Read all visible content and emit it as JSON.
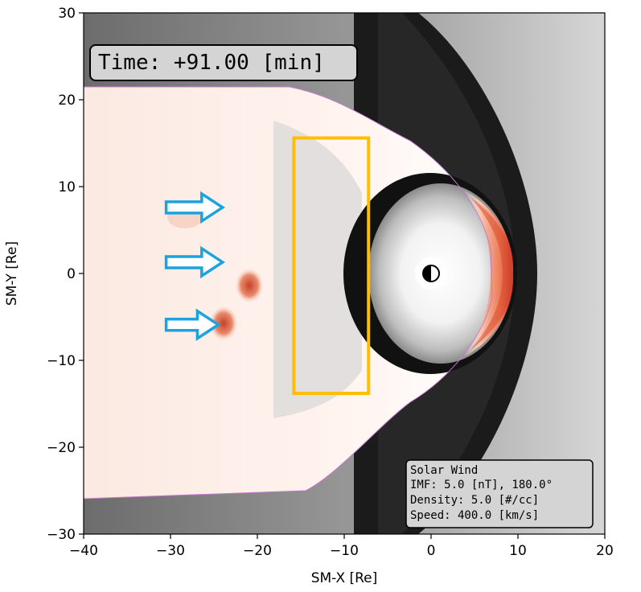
{
  "time_label": "Time: +91.00 [min]",
  "solar_wind": {
    "title": "Solar Wind",
    "imf": "IMF:  5.0 [nT], 180.0°",
    "density": "Density:   5.0 [#/cc]",
    "speed": "Speed:   400.0 [km/s]"
  },
  "colors": {
    "highlight_box": "#ffbf00",
    "flow_arrow": "#1ba3e0",
    "positive_shade": "#cf3a22",
    "dark_shade": "#141414"
  },
  "chart_data": {
    "type": "heatmap",
    "title": "",
    "xlabel": "SM-X [Re]",
    "ylabel": "SM-Y [Re]",
    "xlim": [
      -40,
      20
    ],
    "ylim": [
      -30,
      30
    ],
    "x_ticks": [
      -40,
      -30,
      -20,
      -10,
      0,
      10,
      20
    ],
    "x_tick_labels": [
      "−40",
      "−30",
      "−20",
      "−10",
      "0",
      "10",
      "20"
    ],
    "y_ticks": [
      -30,
      -20,
      -10,
      0,
      10,
      20,
      30
    ],
    "y_tick_labels": [
      "−30",
      "−20",
      "−10",
      "0",
      "10",
      "20",
      "30"
    ],
    "grid": false,
    "earth": {
      "x": 0,
      "y": 0
    },
    "highlight_box": {
      "x_range": [
        -15.8,
        -7.2
      ],
      "y_range": [
        -13.8,
        15.6
      ]
    },
    "flow_arrows": [
      {
        "x_start": -30.5,
        "x_end": -24,
        "y": 7.6
      },
      {
        "x_start": -30.5,
        "x_end": -24,
        "y": 1.3
      },
      {
        "x_start": -30.5,
        "x_end": -24.5,
        "y": -5.9
      }
    ]
  }
}
